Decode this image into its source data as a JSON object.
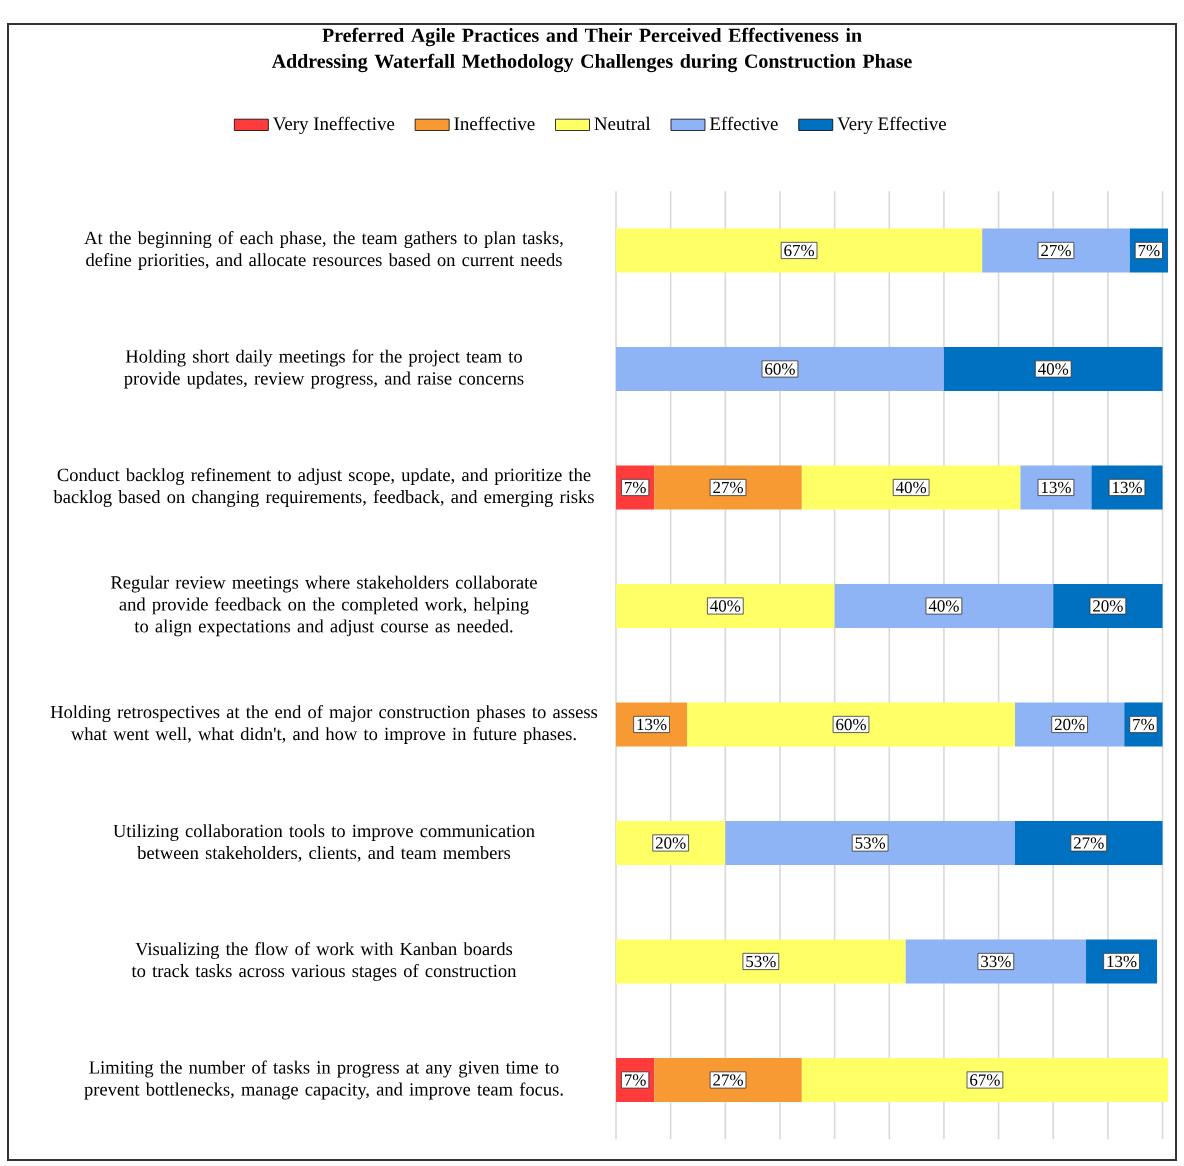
{
  "chart_data": {
    "type": "bar",
    "orientation": "horizontal",
    "stacked": true,
    "title": "Preferred Agile Practices and Their Perceived Effectiveness in Addressing Waterfall Methodology Challenges during Construction Phase",
    "categories": [
      "At the beginning of each phase, the team gathers to plan tasks, define priorities, and allocate resources based on current needs",
      "Holding short daily meetings for the project team to provide updates, review progress, and raise concerns",
      "Conduct backlog refinement to adjust scope, update, and prioritize the backlog based on changing requirements, feedback, and emerging risks",
      "Regular review meetings where stakeholders collaborate and provide feedback on the completed work, helping to align expectations and adjust course as needed.",
      "Holding retrospectives at the end of major construction phases to assess what went well, what didn't, and how to improve in future phases.",
      "Utilizing collaboration tools to improve communication between stakeholders, clients, and team members",
      "Visualizing the flow of work with Kanban boards to track tasks across various stages of construction",
      "Limiting the number of tasks in progress at any given time to prevent bottlenecks, manage capacity, and improve team focus."
    ],
    "series": [
      {
        "name": "Very Ineffective",
        "color": "#ff3b3b",
        "values": [
          null,
          null,
          7,
          null,
          null,
          null,
          null,
          7
        ],
        "value_labels": [
          null,
          null,
          "7%",
          null,
          null,
          null,
          null,
          "7%"
        ]
      },
      {
        "name": "Ineffective",
        "color": "#f79a33",
        "values": [
          null,
          null,
          27,
          null,
          13,
          null,
          null,
          27
        ],
        "value_labels": [
          null,
          null,
          "27%",
          null,
          "13%",
          null,
          null,
          "27%"
        ]
      },
      {
        "name": "Neutral",
        "color": "#ffff66",
        "values": [
          67,
          null,
          40,
          40,
          60,
          20,
          53,
          67
        ],
        "value_labels": [
          "67%",
          null,
          "40%",
          "40%",
          "60%",
          "20%",
          "53%",
          "67%"
        ]
      },
      {
        "name": "Effective",
        "color": "#8fb4f5",
        "values": [
          27,
          60,
          13,
          40,
          20,
          53,
          33,
          null
        ],
        "value_labels": [
          "27%",
          "60%",
          "13%",
          "40%",
          "20%",
          "53%",
          "33%",
          null
        ]
      },
      {
        "name": "Very Effective",
        "color": "#0070c0",
        "values": [
          7,
          40,
          13,
          20,
          7,
          27,
          13,
          null
        ],
        "value_labels": [
          "7%",
          "40%",
          "13%",
          "20%",
          "7%",
          "27%",
          "13%",
          null
        ]
      }
    ],
    "xlim": [
      0,
      101
    ],
    "xticks": [
      {
        "value": 0,
        "label": null
      },
      {
        "value": 10,
        "label": null
      },
      {
        "value": 20,
        "label": null
      },
      {
        "value": 30,
        "label": null
      },
      {
        "value": 40,
        "label": null
      },
      {
        "value": 50,
        "label": null
      },
      {
        "value": 60,
        "label": null
      },
      {
        "value": 70,
        "label": null
      },
      {
        "value": 80,
        "label": null
      },
      {
        "value": 90,
        "label": null
      },
      {
        "value": 100,
        "label": null
      }
    ],
    "grid": "x",
    "legend": "top"
  }
}
